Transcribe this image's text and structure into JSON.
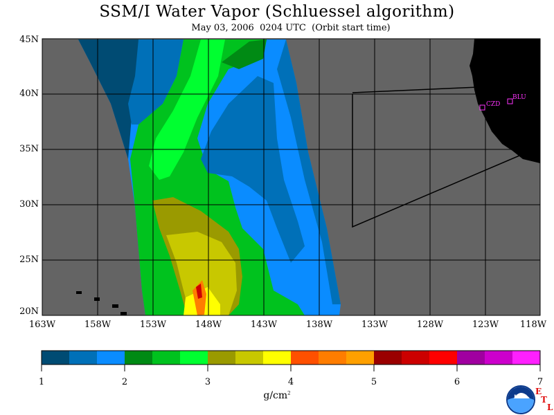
{
  "title": "SSM/I Water Vapor (Schluessel algorithm)",
  "subtitle": "May 03, 2006  0204 UTC  (Orbit start time)",
  "lat_labels": [
    "45N",
    "40N",
    "35N",
    "30N",
    "25N",
    "20N"
  ],
  "lon_labels": [
    "163W",
    "158W",
    "153W",
    "148W",
    "143W",
    "138W",
    "133W",
    "128W",
    "123W",
    "118W"
  ],
  "stations": [
    {
      "label": "CZD"
    },
    {
      "label": "BLU"
    }
  ],
  "colorbar": {
    "ticks": [
      "1",
      "2",
      "3",
      "4",
      "5",
      "6",
      "7"
    ],
    "units": "g/cm",
    "units_exp": "2",
    "colors": [
      "#004b73",
      "#0070b8",
      "#0a8cff",
      "#008a14",
      "#00c21e",
      "#00ff30",
      "#9a9a00",
      "#c8c800",
      "#ffff00",
      "#ff5000",
      "#ff7d00",
      "#ffa000",
      "#9a0000",
      "#cc0000",
      "#ff0000",
      "#a000a0",
      "#cc00cc",
      "#ff20ff"
    ]
  },
  "logo": {
    "text": "NOAA",
    "etl": [
      "E",
      "T",
      "L"
    ]
  },
  "colors": {
    "ocean": "#646464",
    "land": "#000000",
    "station": "#ff33ff"
  }
}
